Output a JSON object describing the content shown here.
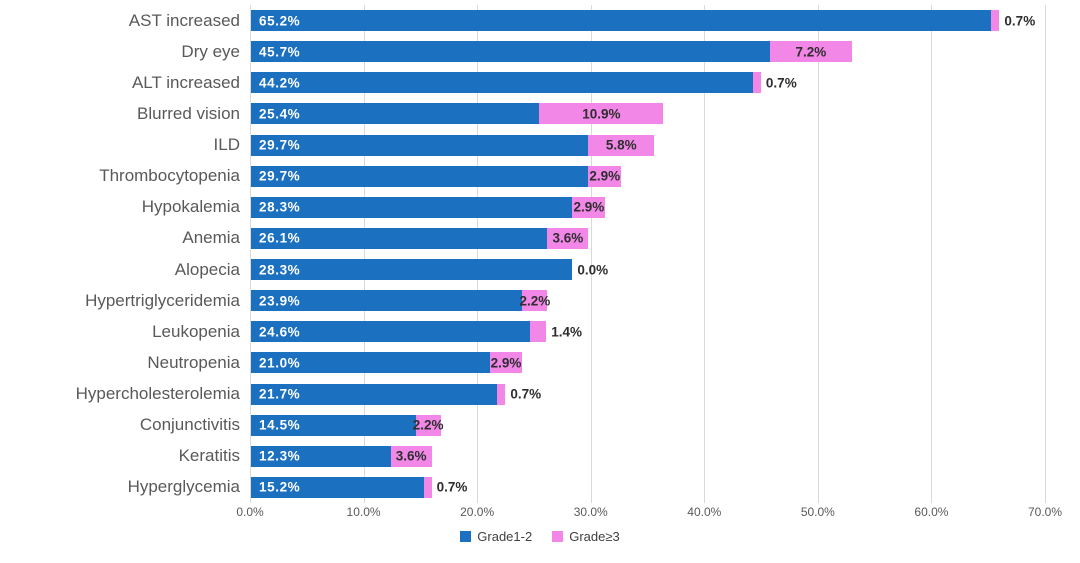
{
  "chart_data": {
    "type": "bar",
    "orientation": "horizontal",
    "stacked": true,
    "title": "",
    "xlabel": "",
    "ylabel": "",
    "xlim": [
      0,
      70
    ],
    "grid": true,
    "legend_position": "bottom",
    "x_ticks": [
      "0.0%",
      "10.0%",
      "20.0%",
      "30.0%",
      "40.0%",
      "50.0%",
      "60.0%",
      "70.0%"
    ],
    "categories": [
      "AST increased",
      "Dry eye",
      "ALT increased",
      "Blurred vision",
      "ILD",
      "Thrombocytopenia",
      "Hypokalemia",
      "Anemia",
      "Alopecia",
      "Hypertriglyceridemia",
      "Leukopenia",
      "Neutropenia",
      "Hypercholesterolemia",
      "Conjunctivitis",
      "Keratitis",
      "Hyperglycemia"
    ],
    "series": [
      {
        "name": "Grade1-2",
        "color": "#1b70c0",
        "values": [
          65.2,
          45.7,
          44.2,
          25.4,
          29.7,
          29.7,
          28.3,
          26.1,
          28.3,
          23.9,
          24.6,
          21.0,
          21.7,
          14.5,
          12.3,
          15.2
        ],
        "labels": [
          "65.2%",
          "45.7%",
          "44.2%",
          "25.4%",
          "29.7%",
          "29.7%",
          "28.3%",
          "26.1%",
          "28.3%",
          "23.9%",
          "24.6%",
          "21.0%",
          "21.7%",
          "14.5%",
          "12.3%",
          "15.2%"
        ]
      },
      {
        "name": "Grade≥3",
        "color": "#f287e8",
        "values": [
          0.7,
          7.2,
          0.7,
          10.9,
          5.8,
          2.9,
          2.9,
          3.6,
          0.0,
          2.2,
          1.4,
          2.9,
          0.7,
          2.2,
          3.6,
          0.7
        ],
        "labels": [
          "0.7%",
          "7.2%",
          "0.7%",
          "10.9%",
          "5.8%",
          "2.9%",
          "2.9%",
          "3.6%",
          "0.0%",
          "2.2%",
          "1.4%",
          "2.9%",
          "0.7%",
          "2.2%",
          "3.6%",
          "0.7%"
        ]
      }
    ],
    "colors": {
      "grid": "#d9d9d9",
      "category_text": "#595959",
      "tick_text": "#595959",
      "inside_label_text": "#ffffff",
      "outside_label_text": "#2e2e2e",
      "background": "#ffffff"
    }
  },
  "legend": {
    "items": [
      {
        "label": "Grade1-2",
        "color": "#1b70c0"
      },
      {
        "label": "Grade≥3",
        "color": "#f287e8"
      }
    ]
  }
}
